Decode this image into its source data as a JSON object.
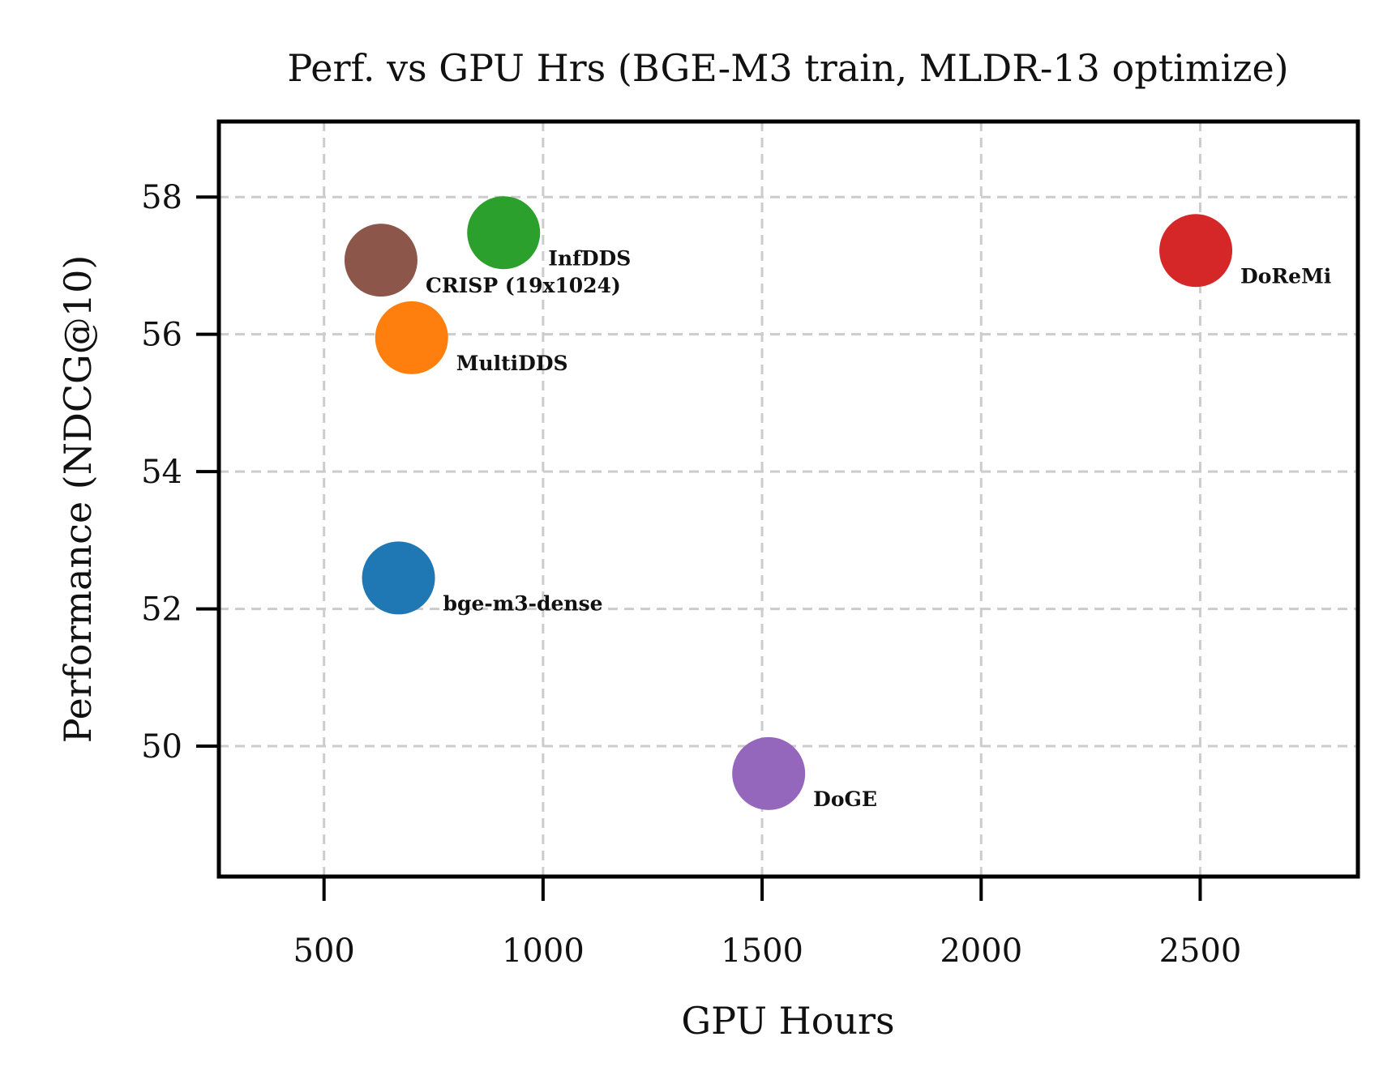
{
  "chart_data": {
    "type": "scatter",
    "title": "Perf. vs GPU Hrs (BGE-M3 train, MLDR-13 optimize)",
    "xlabel": "GPU Hours",
    "ylabel": "Performance (NDCG@10)",
    "xlim": [
      260,
      2860
    ],
    "ylim": [
      48.1,
      59.1
    ],
    "xticks": [
      500,
      1000,
      1500,
      2000,
      2500
    ],
    "yticks": [
      50,
      52,
      54,
      56,
      58
    ],
    "grid": true,
    "points": [
      {
        "name": "bge-m3-dense",
        "x": 670,
        "y": 52.45,
        "color": "#1f77b4"
      },
      {
        "name": "MultiDDS",
        "x": 700,
        "y": 55.95,
        "color": "#ff7f0e"
      },
      {
        "name": "InfDDS",
        "x": 910,
        "y": 57.48,
        "color": "#2ca02c"
      },
      {
        "name": "DoReMi",
        "x": 2490,
        "y": 57.22,
        "color": "#d62728"
      },
      {
        "name": "DoGE",
        "x": 1515,
        "y": 49.6,
        "color": "#9467bd"
      },
      {
        "name": "CRISP (19x1024)",
        "x": 630,
        "y": 57.08,
        "color": "#8c564b"
      }
    ]
  }
}
